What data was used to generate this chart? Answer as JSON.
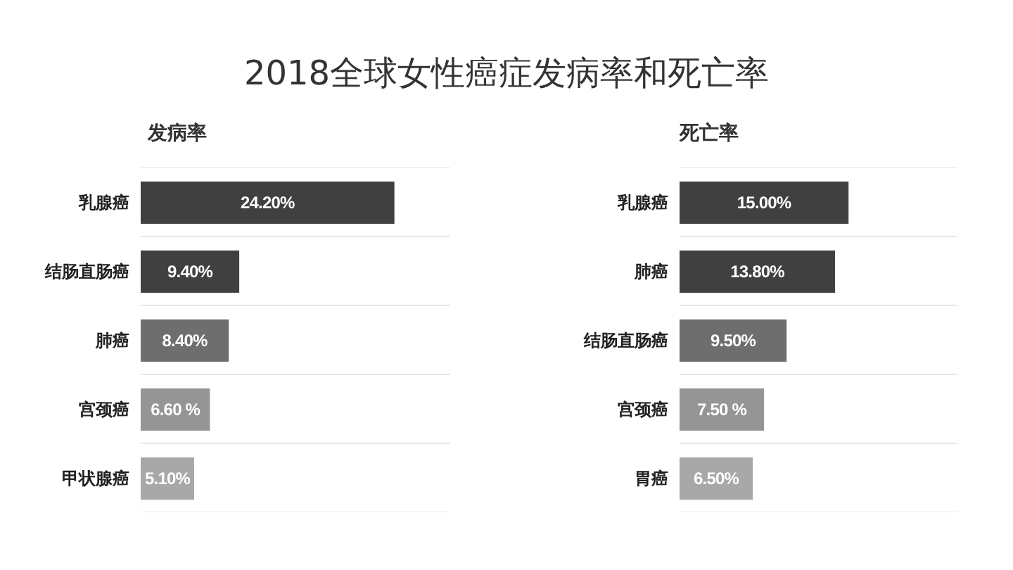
{
  "chart_data": [
    {
      "type": "bar",
      "orientation": "horizontal",
      "title": "2018全球女性癌症发病率和死亡率",
      "subtitle": "发病率",
      "categories": [
        "乳腺癌",
        "结肠直肠癌",
        "肺癌",
        "宫颈癌",
        "甲状腺癌"
      ],
      "values": [
        24.2,
        9.4,
        8.4,
        6.6,
        5.1
      ],
      "value_labels": [
        "24.20%",
        "9.40%",
        "8.40%",
        "6.60 %",
        "5.10%"
      ],
      "colors": [
        "#404040",
        "#404040",
        "#6e6e6e",
        "#959595",
        "#a8a8a8"
      ],
      "grid": "y",
      "tick_labels": "y"
    },
    {
      "type": "bar",
      "orientation": "horizontal",
      "subtitle": "死亡率",
      "categories": [
        "乳腺癌",
        "肺癌",
        "结肠直肠癌",
        "宫颈癌",
        "胃癌"
      ],
      "values": [
        15.0,
        13.8,
        9.5,
        7.5,
        6.5
      ],
      "value_labels": [
        "15.00%",
        "13.80%",
        "9.50%",
        "7.50 %",
        "6.50%"
      ],
      "colors": [
        "#404040",
        "#404040",
        "#6e6e6e",
        "#959595",
        "#a8a8a8"
      ],
      "grid": "y",
      "tick_labels": "y"
    }
  ]
}
